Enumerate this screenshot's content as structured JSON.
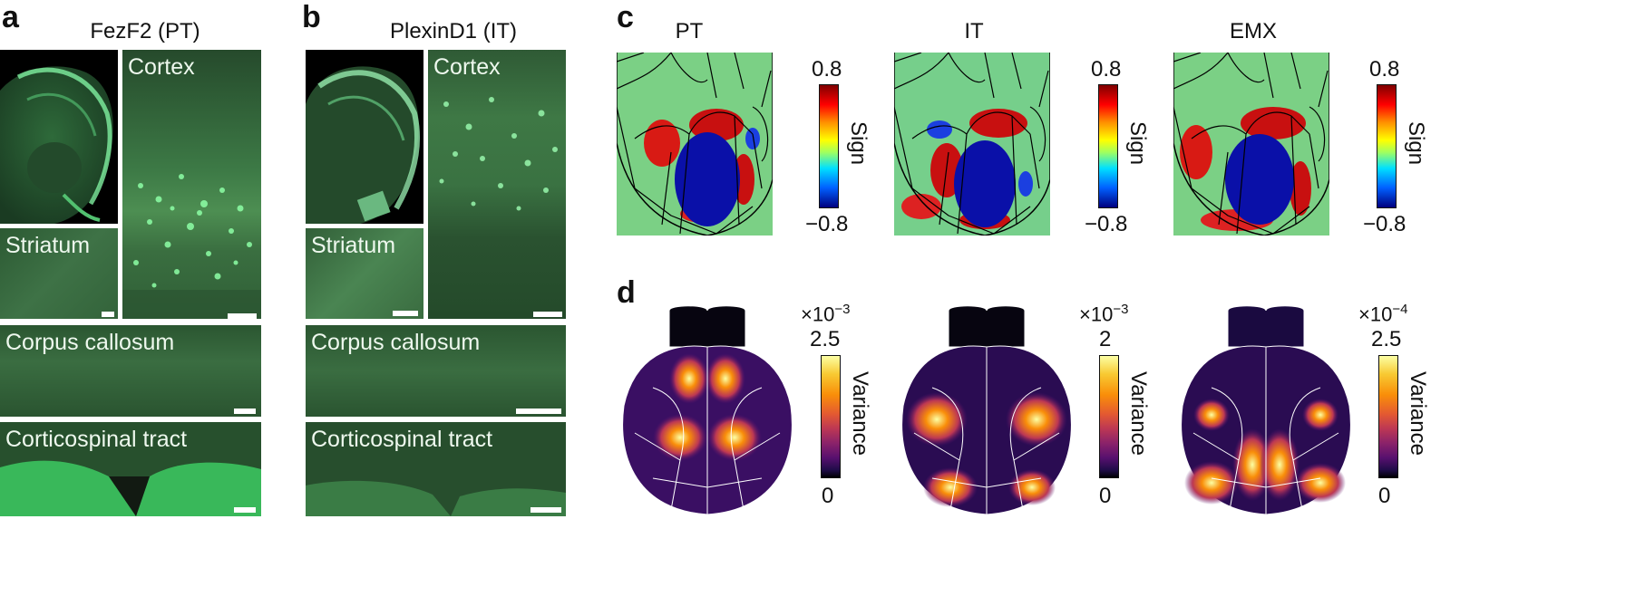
{
  "panels": {
    "a": "a",
    "b": "b",
    "c": "c",
    "d": "d"
  },
  "panel_a": {
    "title": "FezF2 (PT)",
    "labels": {
      "cortex": "Cortex",
      "striatum": "Striatum",
      "corpus_callosum": "Corpus callosum",
      "corticospinal": "Corticospinal tract"
    }
  },
  "panel_b": {
    "title": "PlexinD1 (IT)",
    "labels": {
      "cortex": "Cortex",
      "striatum": "Striatum",
      "corpus_callosum": "Corpus callosum",
      "corticospinal": "Corticospinal tract"
    }
  },
  "panel_c": {
    "maps": [
      {
        "title": "PT",
        "cb_top": "0.8",
        "cb_bottom": "−0.8",
        "cb_label": "Sign"
      },
      {
        "title": "IT",
        "cb_top": "0.8",
        "cb_bottom": "−0.8",
        "cb_label": "Sign"
      },
      {
        "title": "EMX",
        "cb_top": "0.8",
        "cb_bottom": "−0.8",
        "cb_label": "Sign"
      }
    ],
    "colormap": "jet"
  },
  "panel_d": {
    "maps": [
      {
        "exp_base": "×10",
        "exp_pow": "−3",
        "cb_top": "2.5",
        "cb_bottom": "0",
        "cb_label": "Variance"
      },
      {
        "exp_base": "×10",
        "exp_pow": "−3",
        "cb_top": "2",
        "cb_bottom": "0",
        "cb_label": "Variance"
      },
      {
        "exp_base": "×10",
        "exp_pow": "−4",
        "cb_top": "2.5",
        "cb_bottom": "0",
        "cb_label": "Variance"
      }
    ],
    "colormap": "inferno"
  },
  "colors": {
    "fluor_green": "#3fd07a",
    "tissue_dark": "#1e3a22",
    "jet_red": "#c81010",
    "jet_blue": "#0a10a8",
    "bg_yellowgreen": "#8fd36a"
  }
}
